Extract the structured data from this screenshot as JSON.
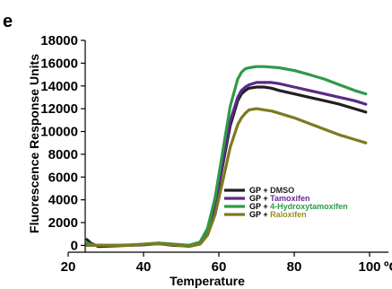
{
  "panel_letter": "e",
  "chart_data": {
    "type": "line",
    "title": "",
    "xlabel": "Temperature",
    "x_unit": "ºC",
    "ylabel": "Fluorescence Response Units",
    "xlim": [
      20,
      105
    ],
    "ylim": [
      -600,
      18000
    ],
    "x_ticks": [
      20,
      40,
      60,
      80,
      100
    ],
    "y_ticks": [
      0,
      2000,
      4000,
      6000,
      8000,
      10000,
      12000,
      14000,
      16000,
      18000
    ],
    "x_tick_labels": [
      "20",
      "40",
      "60",
      "80",
      "100"
    ],
    "y_tick_labels": [
      "0",
      "2000",
      "4000",
      "6000",
      "8000",
      "10000",
      "12000",
      "14000",
      "16000",
      "18000"
    ],
    "grid": false,
    "legend_position": "lower-right",
    "series": [
      {
        "name": "GP + DMSO",
        "legend_prefix": "GP + ",
        "legend_suffix": "DMSO",
        "color": "#231f20",
        "suffix_color": "#231f20",
        "x": [
          25,
          26,
          28,
          32,
          36,
          40,
          44,
          48,
          52,
          55,
          57,
          59,
          61,
          63,
          65,
          66,
          67,
          68,
          70,
          72,
          74,
          76,
          80,
          84,
          88,
          92,
          96,
          99
        ],
        "y": [
          500,
          200,
          -100,
          -50,
          0,
          50,
          150,
          0,
          -50,
          200,
          1200,
          3500,
          7000,
          10500,
          12700,
          13300,
          13600,
          13800,
          13900,
          13900,
          13800,
          13600,
          13300,
          13000,
          12700,
          12400,
          12000,
          11700
        ]
      },
      {
        "name": "GP + Tamoxifen",
        "legend_prefix": "GP + ",
        "legend_suffix": "Tamoxifen",
        "color": "#5b2a86",
        "suffix_color": "#6a2a9a",
        "x": [
          25,
          26,
          28,
          32,
          36,
          40,
          44,
          48,
          52,
          55,
          57,
          59,
          61,
          63,
          65,
          66,
          67,
          68,
          70,
          72,
          74,
          76,
          80,
          84,
          88,
          92,
          96,
          99
        ],
        "y": [
          0,
          0,
          0,
          0,
          0,
          100,
          200,
          100,
          0,
          200,
          1300,
          3700,
          7300,
          10900,
          13000,
          13600,
          13900,
          14100,
          14300,
          14300,
          14300,
          14200,
          13900,
          13600,
          13300,
          13000,
          12700,
          12400
        ]
      },
      {
        "name": "GP + 4-Hydroxytamoxifen",
        "legend_prefix": "GP + ",
        "legend_suffix": "4-Hydroxytamoxifen",
        "color": "#2e9a48",
        "suffix_color": "#2e9a48",
        "x": [
          25,
          26,
          28,
          32,
          36,
          40,
          44,
          48,
          52,
          55,
          57,
          59,
          61,
          63,
          65,
          66,
          67,
          68,
          70,
          72,
          74,
          76,
          80,
          84,
          88,
          92,
          96,
          99
        ],
        "y": [
          200,
          100,
          0,
          0,
          50,
          100,
          200,
          100,
          0,
          300,
          1500,
          4200,
          8200,
          12200,
          14600,
          15200,
          15500,
          15600,
          15700,
          15700,
          15650,
          15600,
          15350,
          15000,
          14600,
          14100,
          13600,
          13300
        ]
      },
      {
        "name": "GP + Raloxifen",
        "legend_prefix": "GP + ",
        "legend_suffix": "Raloxifen",
        "color": "#7d7a1f",
        "suffix_color": "#9a8f1e",
        "x": [
          25,
          26,
          28,
          32,
          36,
          40,
          44,
          48,
          52,
          55,
          57,
          59,
          61,
          63,
          65,
          66,
          67,
          68,
          70,
          72,
          74,
          76,
          80,
          84,
          88,
          92,
          96,
          99
        ],
        "y": [
          0,
          0,
          0,
          0,
          0,
          100,
          150,
          50,
          -100,
          100,
          900,
          2700,
          5600,
          8600,
          10600,
          11200,
          11600,
          11900,
          12000,
          11900,
          11800,
          11600,
          11200,
          10700,
          10200,
          9700,
          9300,
          9000
        ]
      }
    ]
  }
}
